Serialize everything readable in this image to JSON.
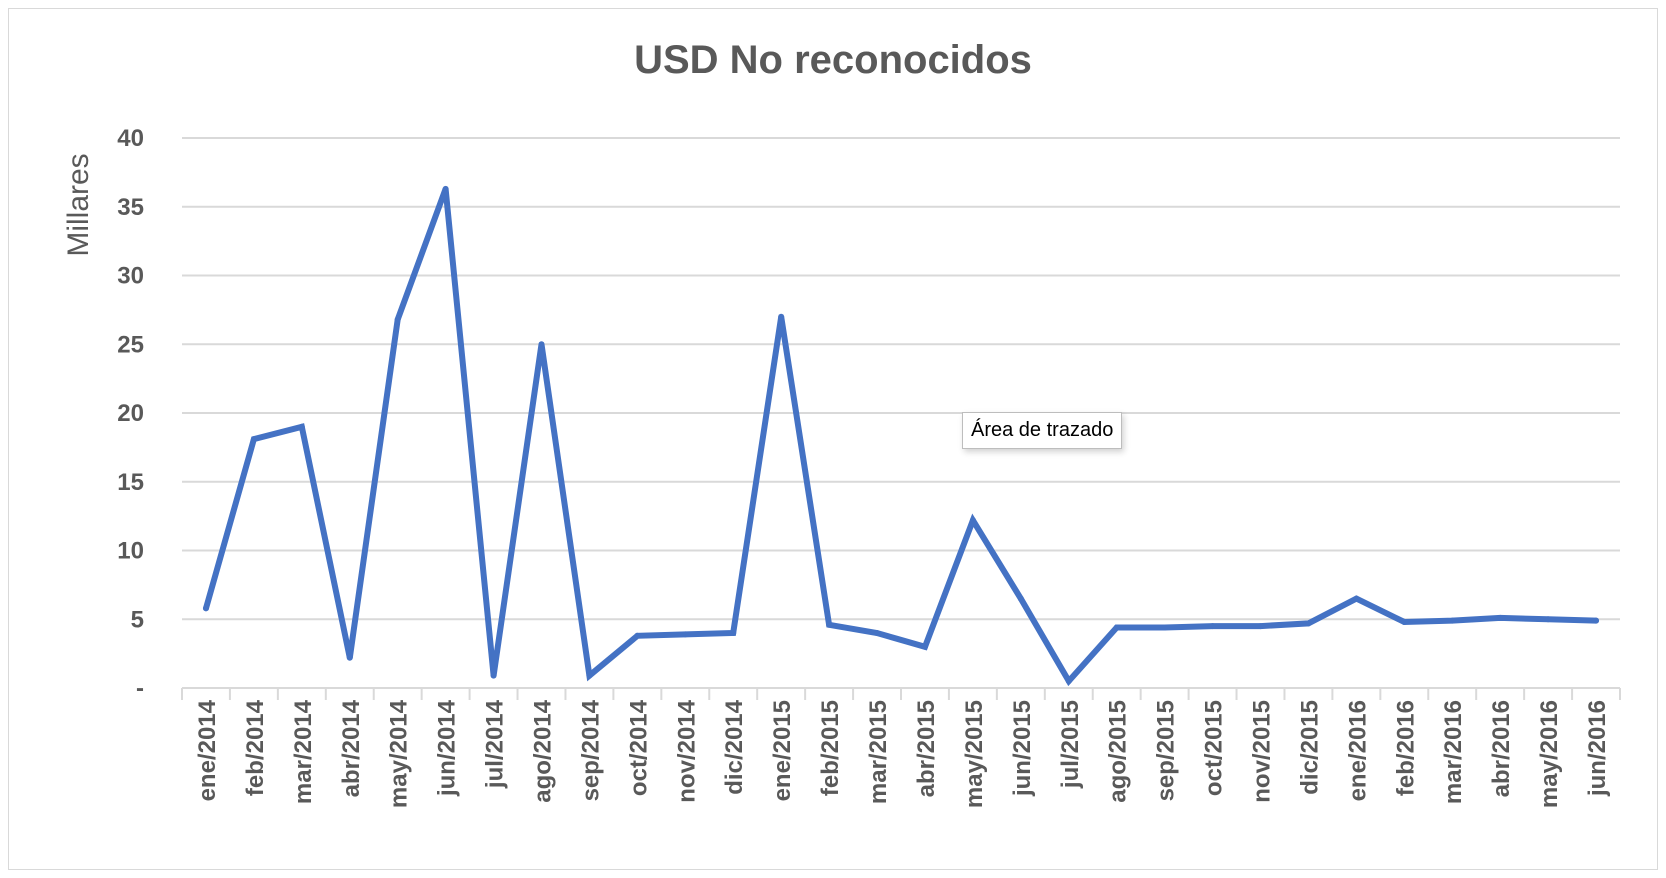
{
  "chart_data": {
    "type": "line",
    "title": "USD No reconocidos",
    "ylabel": "Millares",
    "xlabel": "",
    "ylim": [
      0,
      40
    ],
    "yticks": [
      0,
      5,
      10,
      15,
      20,
      25,
      30,
      35,
      40
    ],
    "ytick_labels": [
      "-",
      "5",
      "10",
      "15",
      "20",
      "25",
      "30",
      "35",
      "40"
    ],
    "grid": true,
    "legend": "none",
    "categories": [
      "ene/2014",
      "feb/2014",
      "mar/2014",
      "abr/2014",
      "may/2014",
      "jun/2014",
      "jul/2014",
      "ago/2014",
      "sep/2014",
      "oct/2014",
      "nov/2014",
      "dic/2014",
      "ene/2015",
      "feb/2015",
      "mar/2015",
      "abr/2015",
      "may/2015",
      "jun/2015",
      "jul/2015",
      "ago/2015",
      "sep/2015",
      "oct/2015",
      "nov/2015",
      "dic/2015",
      "ene/2016",
      "feb/2016",
      "mar/2016",
      "abr/2016",
      "may/2016",
      "jun/2016"
    ],
    "series": [
      {
        "color": "#4472c4",
        "values": [
          5.8,
          18.1,
          19.0,
          2.2,
          26.8,
          36.3,
          0.9,
          25.0,
          0.9,
          3.8,
          3.9,
          4.0,
          27.0,
          4.6,
          4.0,
          3.0,
          12.2,
          6.5,
          0.5,
          4.4,
          4.4,
          4.5,
          4.5,
          4.7,
          6.5,
          4.8,
          4.9,
          5.1,
          5.0,
          4.9
        ]
      }
    ]
  },
  "tooltip": {
    "label": "Área de trazado"
  }
}
